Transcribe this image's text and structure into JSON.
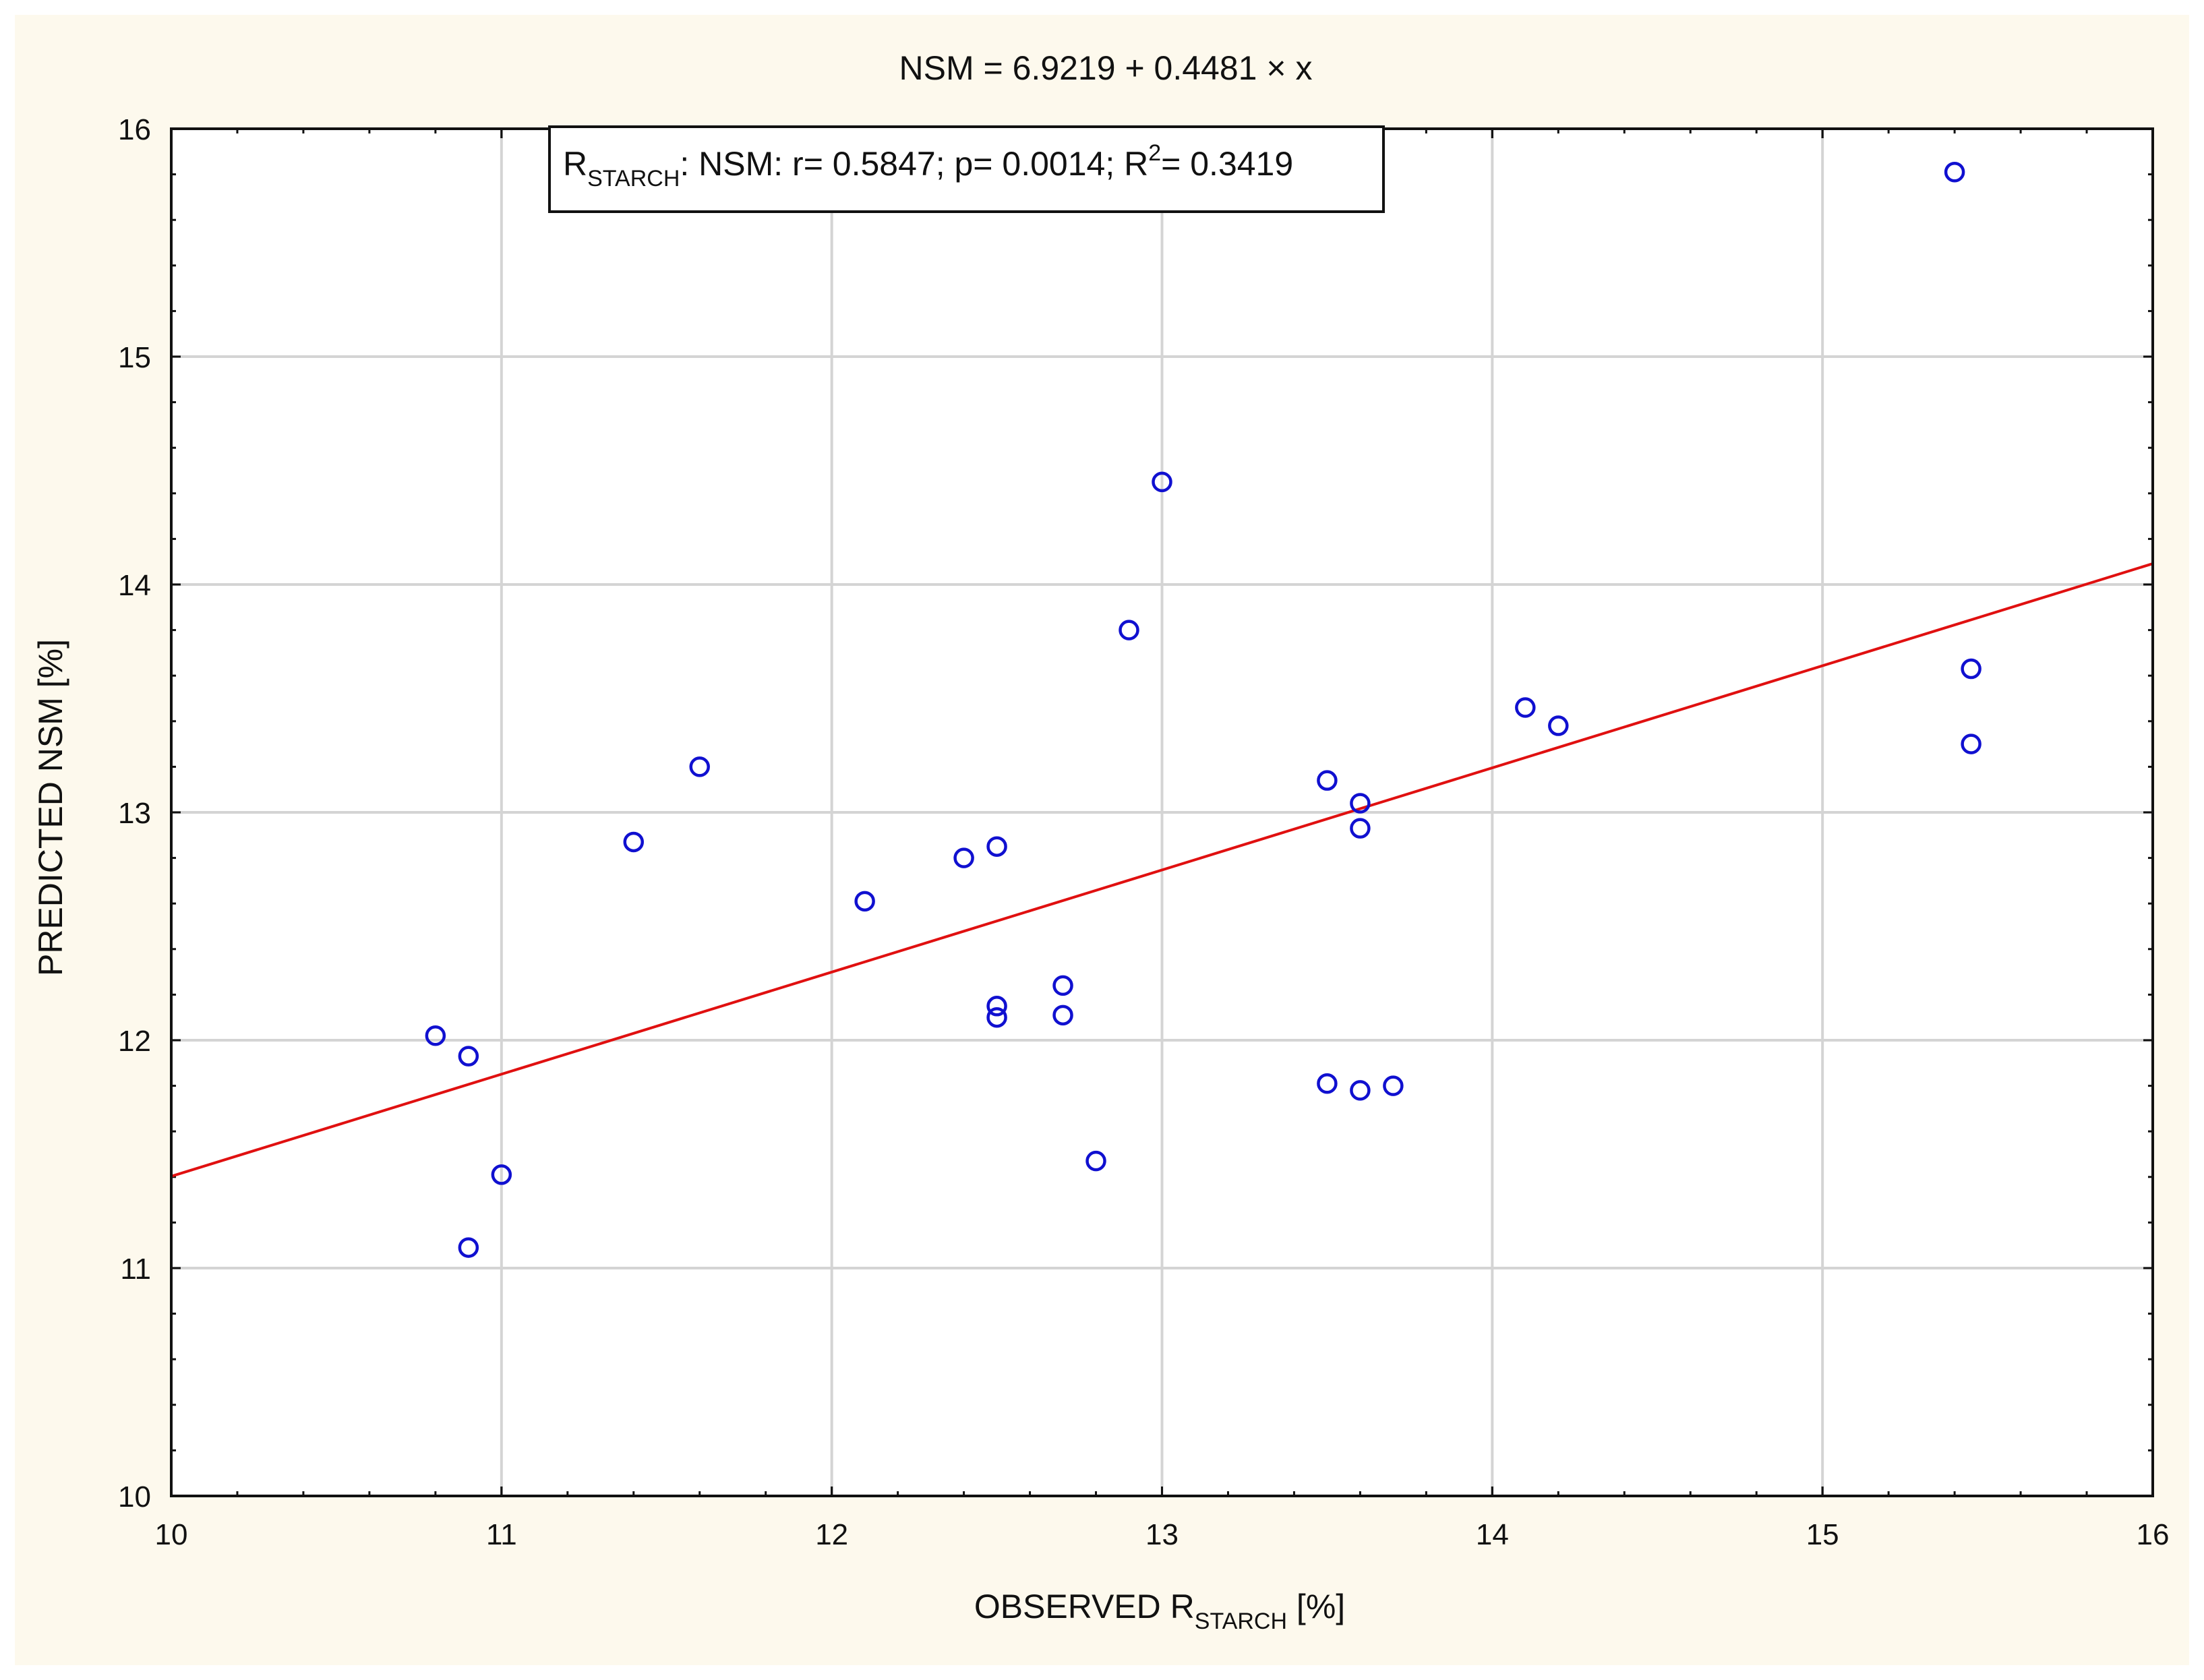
{
  "chart_data": {
    "type": "scatter",
    "title": "NSM = 6.9219 + 0.4481 × x",
    "xlabel": {
      "main": "OBSERVED R",
      "sub": "STARCH",
      "tail": " [%]"
    },
    "ylabel": "PREDICTED NSM [%]",
    "xlim": [
      10,
      16
    ],
    "ylim": [
      10,
      16
    ],
    "xticks": [
      10,
      11,
      12,
      13,
      14,
      15,
      16
    ],
    "yticks": [
      10,
      11,
      12,
      13,
      14,
      15,
      16
    ],
    "grid": true,
    "annotation": {
      "r_main": "R",
      "r_sub": "STARCH",
      "mid": ": NSM: r= 0.5847; p= 0.0014; R",
      "sup": "2",
      "tail": "= 0.3419"
    },
    "regression": {
      "intercept": 6.9219,
      "slope": 0.4481
    },
    "colors": {
      "background": "#fdf9ed",
      "points": "#1010d0",
      "line": "#e01010",
      "grid": "#d4d4d4",
      "axes": "#111111"
    },
    "points": [
      {
        "x": 10.8,
        "y": 12.02
      },
      {
        "x": 10.9,
        "y": 11.93
      },
      {
        "x": 10.9,
        "y": 11.09
      },
      {
        "x": 11.0,
        "y": 11.41
      },
      {
        "x": 11.4,
        "y": 12.87
      },
      {
        "x": 11.6,
        "y": 13.2
      },
      {
        "x": 12.1,
        "y": 12.61
      },
      {
        "x": 12.4,
        "y": 12.8
      },
      {
        "x": 12.5,
        "y": 12.85
      },
      {
        "x": 12.5,
        "y": 12.15
      },
      {
        "x": 12.5,
        "y": 12.1
      },
      {
        "x": 12.7,
        "y": 12.24
      },
      {
        "x": 12.7,
        "y": 12.11
      },
      {
        "x": 12.8,
        "y": 11.47
      },
      {
        "x": 12.9,
        "y": 13.8
      },
      {
        "x": 13.0,
        "y": 14.45
      },
      {
        "x": 13.5,
        "y": 13.14
      },
      {
        "x": 13.6,
        "y": 13.04
      },
      {
        "x": 13.6,
        "y": 12.93
      },
      {
        "x": 13.5,
        "y": 11.81
      },
      {
        "x": 13.6,
        "y": 11.78
      },
      {
        "x": 13.7,
        "y": 11.8
      },
      {
        "x": 14.1,
        "y": 13.46
      },
      {
        "x": 14.2,
        "y": 13.38
      },
      {
        "x": 15.4,
        "y": 15.81
      },
      {
        "x": 15.45,
        "y": 13.63
      },
      {
        "x": 15.45,
        "y": 13.3
      }
    ]
  }
}
